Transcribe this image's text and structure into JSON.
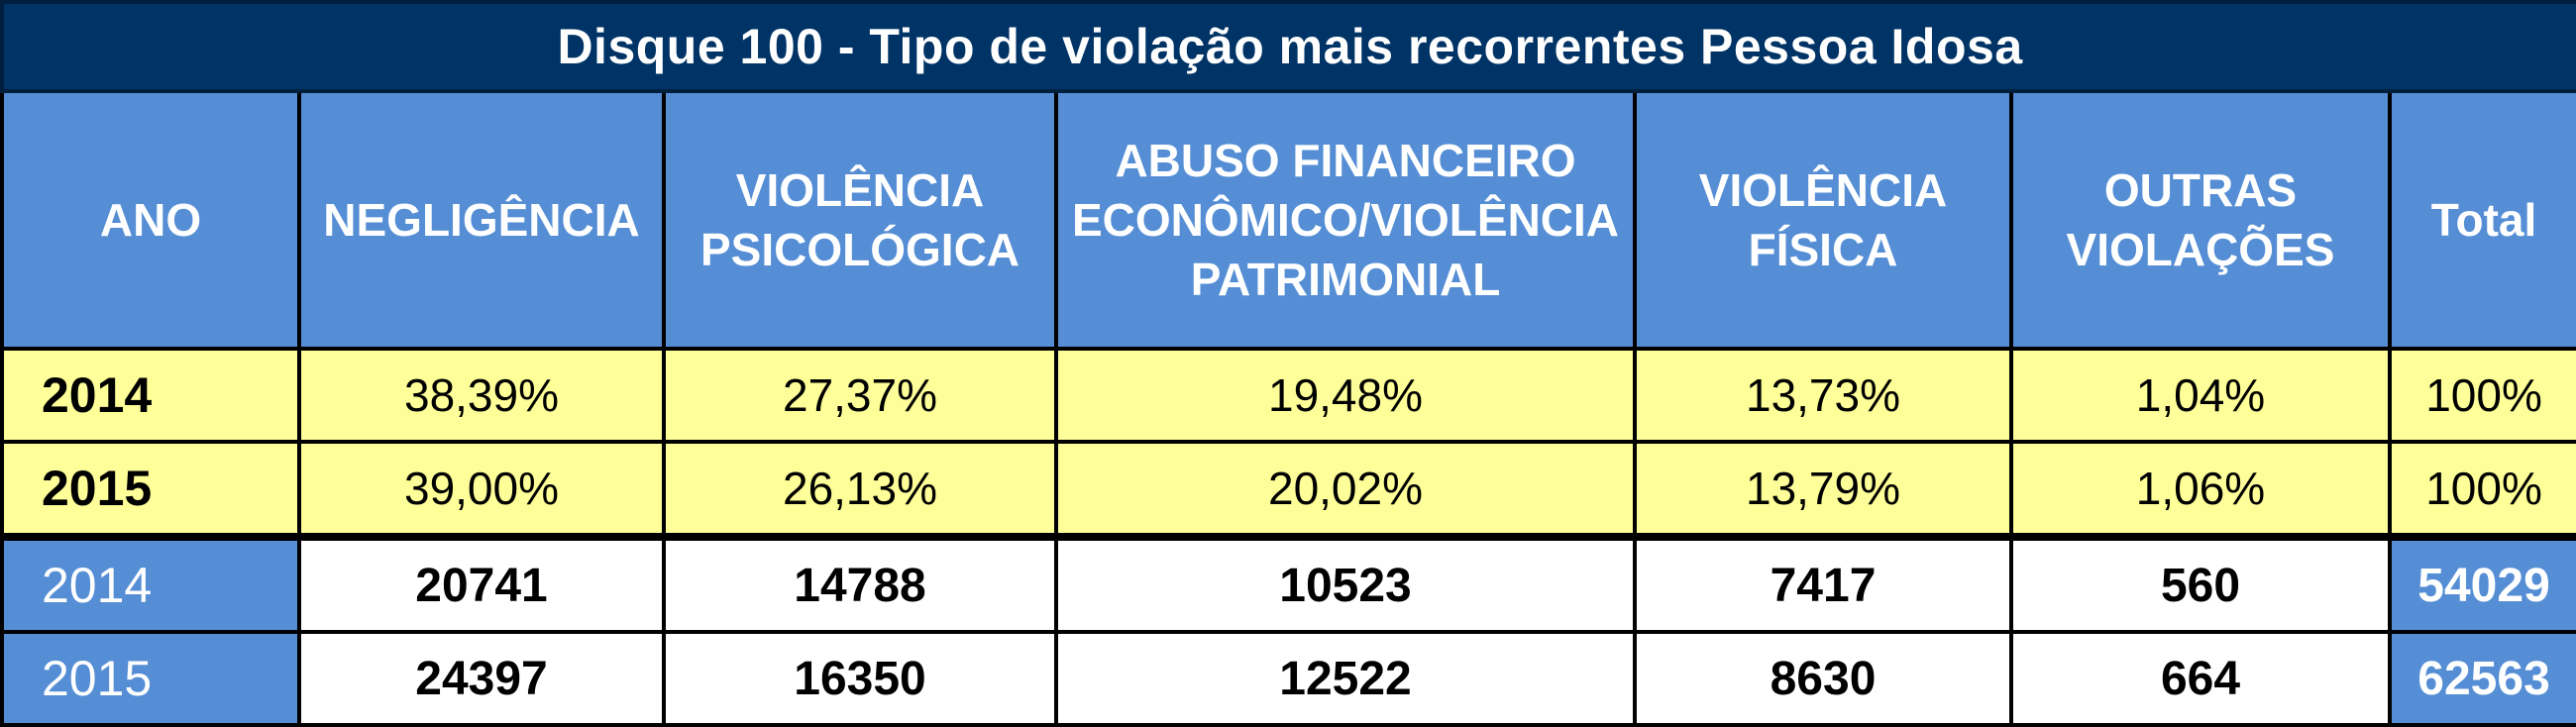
{
  "chart_data": {
    "type": "table",
    "title": "Disque 100 -  Tipo de violação mais recorrentes Pessoa Idosa",
    "columns": [
      "ANO",
      [
        "NEGLIGÊNCIA"
      ],
      [
        "VIOLÊNCIA",
        "PSICOLÓGICA"
      ],
      [
        "ABUSO FINANCEIRO",
        "ECONÔMICO/VIOLÊNCIA",
        "PATRIMONIAL"
      ],
      [
        "VIOLÊNCIA",
        "FÍSICA"
      ],
      [
        "OUTRAS",
        "VIOLAÇÕES"
      ],
      "Total"
    ],
    "percent_rows": [
      {
        "year": "2014",
        "values": [
          "38,39%",
          "27,37%",
          "19,48%",
          "13,73%",
          "1,04%"
        ],
        "total": "100%"
      },
      {
        "year": "2015",
        "values": [
          "39,00%",
          "26,13%",
          "20,02%",
          "13,79%",
          "1,06%"
        ],
        "total": "100%"
      }
    ],
    "count_rows": [
      {
        "year": "2014",
        "values": [
          20741,
          14788,
          10523,
          7417,
          560
        ],
        "total": 54029
      },
      {
        "year": "2015",
        "values": [
          24397,
          16350,
          12522,
          8630,
          664
        ],
        "total": 62563
      }
    ]
  },
  "colors": {
    "title_bg": "#003366",
    "header_bg": "#558ed5",
    "percent_bg": "#ffff99",
    "count_bg": "#ffffff"
  }
}
